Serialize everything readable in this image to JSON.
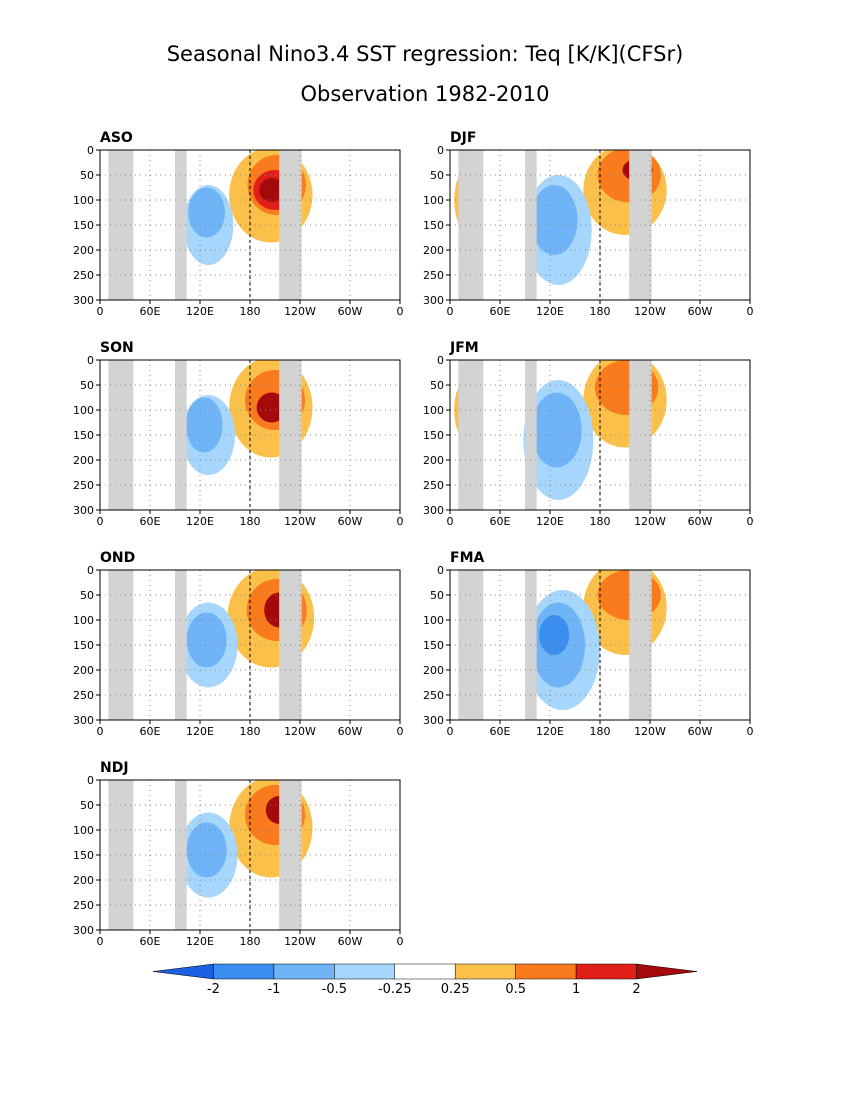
{
  "title": "Seasonal Nino3.4 SST regression: Teq [K/K](CFSr)",
  "subtitle": "Observation 1982-2010",
  "chart_data": {
    "type": "contour",
    "x_ticks": [
      "0",
      "60E",
      "120E",
      "180",
      "120W",
      "60W",
      "0"
    ],
    "y_ticks": [
      "0",
      "50",
      "100",
      "150",
      "200",
      "250",
      "300"
    ],
    "xlim": [
      0,
      360
    ],
    "ylim": [
      300,
      0
    ],
    "grid": "dotted",
    "dateline": 180,
    "colorbar": {
      "levels": [
        "-2",
        "-1",
        "-0.5",
        "-0.25",
        "0.25",
        "0.5",
        "1",
        "2"
      ],
      "colors": [
        "#1c5fe0",
        "#3a8ef0",
        "#6eb4f7",
        "#a6d6fb",
        "#ffffff",
        "#fbc04a",
        "#fa7a1e",
        "#e02018",
        "#a50a0a"
      ]
    },
    "land_mask_lon": [
      [
        10,
        40
      ],
      [
        90,
        104
      ],
      [
        215,
        242
      ]
    ],
    "panels": [
      {
        "label": "ASO",
        "pos": [
          0,
          0
        ],
        "features": [
          {
            "lon": 205,
            "depth": 90,
            "rx": 50,
            "ry": 95,
            "level": "0.5"
          },
          {
            "lon": 212,
            "depth": 70,
            "rx": 35,
            "ry": 60,
            "level": "1"
          },
          {
            "lon": 210,
            "depth": 80,
            "rx": 26,
            "ry": 40,
            "level": "1.5"
          },
          {
            "lon": 206,
            "depth": 80,
            "rx": 15,
            "ry": 24,
            "level": "2"
          },
          {
            "lon": 130,
            "depth": 150,
            "rx": 30,
            "ry": 80,
            "level": "-0.25"
          },
          {
            "lon": 128,
            "depth": 125,
            "rx": 22,
            "ry": 50,
            "level": "-0.5"
          }
        ]
      },
      {
        "label": "DJF",
        "pos": [
          1,
          0
        ],
        "features": [
          {
            "lon": 210,
            "depth": 80,
            "rx": 50,
            "ry": 90,
            "level": "0.5"
          },
          {
            "lon": 215,
            "depth": 50,
            "rx": 38,
            "ry": 55,
            "level": "1"
          },
          {
            "lon": 225,
            "depth": 40,
            "rx": 18,
            "ry": 22,
            "level": "2"
          },
          {
            "lon": 130,
            "depth": 160,
            "rx": 40,
            "ry": 110,
            "level": "-0.25"
          },
          {
            "lon": 125,
            "depth": 140,
            "rx": 28,
            "ry": 70,
            "level": "-0.5"
          },
          {
            "lon": 20,
            "depth": 100,
            "rx": 15,
            "ry": 60,
            "level": "0.5"
          }
        ]
      },
      {
        "label": "SON",
        "pos": [
          0,
          1
        ],
        "features": [
          {
            "lon": 205,
            "depth": 95,
            "rx": 50,
            "ry": 100,
            "level": "0.5"
          },
          {
            "lon": 210,
            "depth": 80,
            "rx": 36,
            "ry": 60,
            "level": "1"
          },
          {
            "lon": 206,
            "depth": 95,
            "rx": 18,
            "ry": 30,
            "level": "2"
          },
          {
            "lon": 130,
            "depth": 150,
            "rx": 32,
            "ry": 80,
            "level": "-0.25"
          },
          {
            "lon": 125,
            "depth": 130,
            "rx": 22,
            "ry": 55,
            "level": "-0.5"
          }
        ]
      },
      {
        "label": "JFM",
        "pos": [
          1,
          1
        ],
        "features": [
          {
            "lon": 210,
            "depth": 80,
            "rx": 50,
            "ry": 95,
            "level": "0.5"
          },
          {
            "lon": 212,
            "depth": 55,
            "rx": 38,
            "ry": 55,
            "level": "1"
          },
          {
            "lon": 130,
            "depth": 160,
            "rx": 42,
            "ry": 120,
            "level": "-0.25"
          },
          {
            "lon": 128,
            "depth": 140,
            "rx": 30,
            "ry": 75,
            "level": "-0.5"
          },
          {
            "lon": 20,
            "depth": 100,
            "rx": 15,
            "ry": 60,
            "level": "0.5"
          }
        ]
      },
      {
        "label": "OND",
        "pos": [
          0,
          2
        ],
        "features": [
          {
            "lon": 205,
            "depth": 95,
            "rx": 52,
            "ry": 100,
            "level": "0.5"
          },
          {
            "lon": 212,
            "depth": 80,
            "rx": 36,
            "ry": 62,
            "level": "1"
          },
          {
            "lon": 215,
            "depth": 80,
            "rx": 18,
            "ry": 35,
            "level": "2"
          },
          {
            "lon": 130,
            "depth": 150,
            "rx": 35,
            "ry": 85,
            "level": "-0.25"
          },
          {
            "lon": 128,
            "depth": 140,
            "rx": 24,
            "ry": 55,
            "level": "-0.5"
          }
        ]
      },
      {
        "label": "FMA",
        "pos": [
          1,
          2
        ],
        "features": [
          {
            "lon": 210,
            "depth": 75,
            "rx": 50,
            "ry": 95,
            "level": "0.5"
          },
          {
            "lon": 215,
            "depth": 50,
            "rx": 38,
            "ry": 50,
            "level": "1"
          },
          {
            "lon": 135,
            "depth": 160,
            "rx": 45,
            "ry": 120,
            "level": "-0.25"
          },
          {
            "lon": 130,
            "depth": 150,
            "rx": 32,
            "ry": 85,
            "level": "-0.5"
          },
          {
            "lon": 125,
            "depth": 130,
            "rx": 18,
            "ry": 40,
            "level": "-1"
          }
        ]
      },
      {
        "label": "NDJ",
        "pos": [
          0,
          3
        ],
        "features": [
          {
            "lon": 205,
            "depth": 95,
            "rx": 50,
            "ry": 100,
            "level": "0.5"
          },
          {
            "lon": 210,
            "depth": 70,
            "rx": 36,
            "ry": 60,
            "level": "1"
          },
          {
            "lon": 215,
            "depth": 60,
            "rx": 16,
            "ry": 28,
            "level": "2"
          },
          {
            "lon": 130,
            "depth": 150,
            "rx": 35,
            "ry": 85,
            "level": "-0.25"
          },
          {
            "lon": 128,
            "depth": 140,
            "rx": 24,
            "ry": 55,
            "level": "-0.5"
          }
        ]
      }
    ]
  }
}
